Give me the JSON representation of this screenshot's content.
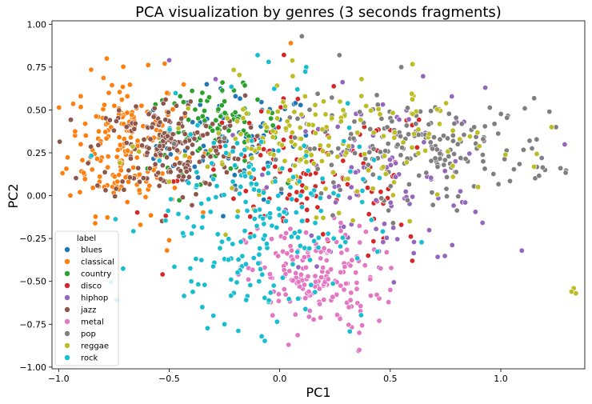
{
  "chart_data": {
    "type": "scatter",
    "title": "PCA visualization by genres (3 seconds fragments)",
    "xlabel": "PC1",
    "ylabel": "PC2",
    "xlim": [
      -1.03,
      1.38
    ],
    "ylim": [
      -1.01,
      1.02
    ],
    "x_ticks": [
      -1.0,
      -0.5,
      0.0,
      0.5,
      1.0
    ],
    "x_tick_labels": [
      "−1.0",
      "−0.5",
      "0.0",
      "0.5",
      "1.0"
    ],
    "y_ticks": [
      1.0,
      0.75,
      0.5,
      0.25,
      0.0,
      -0.25,
      -0.5,
      -0.75,
      -1.0
    ],
    "y_tick_labels": [
      "1.00",
      "0.75",
      "0.50",
      "0.25",
      "0.00",
      "−0.25",
      "−0.50",
      "−0.75",
      "−1.00"
    ],
    "grid": false,
    "legend": {
      "title": "label",
      "position": "lower-left",
      "entries": [
        "blues",
        "classical",
        "country",
        "disco",
        "hiphop",
        "jazz",
        "metal",
        "pop",
        "reggae",
        "rock"
      ]
    },
    "series": [
      {
        "name": "blues",
        "color": "#1f77b4",
        "center": [
          -0.2,
          0.3
        ],
        "spread": [
          0.18,
          0.16
        ],
        "count": 70,
        "points": [
          [
            -0.33,
            0.65
          ],
          [
            -0.26,
            0.61
          ],
          [
            -0.2,
            0.58
          ],
          [
            -0.36,
            0.53
          ],
          [
            -0.08,
            0.5
          ]
        ]
      },
      {
        "name": "classical",
        "color": "#ff7f0e",
        "center": [
          -0.7,
          0.3
        ],
        "spread": [
          0.13,
          0.2
        ],
        "count": 190,
        "points": [
          [
            -0.9,
            0.58
          ],
          [
            -0.88,
            0.42
          ],
          [
            -0.9,
            0.3
          ],
          [
            -0.78,
            0.06
          ],
          [
            -0.63,
            -0.17
          ],
          [
            -0.52,
            0.77
          ],
          [
            -0.5,
            -0.26
          ],
          [
            0.05,
            0.89
          ],
          [
            -0.51,
            -0.32
          ]
        ]
      },
      {
        "name": "country",
        "color": "#2ca02c",
        "center": [
          -0.3,
          0.38
        ],
        "spread": [
          0.15,
          0.12
        ],
        "count": 80,
        "points": [
          [
            -0.45,
            0.58
          ],
          [
            -0.35,
            0.6
          ],
          [
            -0.25,
            0.55
          ],
          [
            -0.1,
            0.56
          ],
          [
            -0.04,
            0.45
          ]
        ]
      },
      {
        "name": "disco",
        "color": "#d62728",
        "center": [
          0.15,
          0.1
        ],
        "spread": [
          0.3,
          0.22
        ],
        "count": 110,
        "points": [
          [
            0.4,
            -0.35
          ],
          [
            0.6,
            -0.38
          ],
          [
            0.47,
            -0.25
          ],
          [
            0.55,
            -0.17
          ],
          [
            0.1,
            -0.05
          ]
        ]
      },
      {
        "name": "hiphop",
        "color": "#9467bd",
        "center": [
          0.5,
          0.1
        ],
        "spread": [
          0.25,
          0.25
        ],
        "count": 110,
        "points": [
          [
            0.93,
            0.63
          ],
          [
            -0.5,
            0.79
          ],
          [
            -0.29,
            0.68
          ],
          [
            0.8,
            0.43
          ],
          [
            0.45,
            -0.42
          ]
        ]
      },
      {
        "name": "jazz",
        "color": "#8c564b",
        "center": [
          -0.5,
          0.28
        ],
        "spread": [
          0.17,
          0.15
        ],
        "count": 180,
        "points": [
          [
            -0.65,
            0.52
          ],
          [
            -0.75,
            0.38
          ],
          [
            -0.55,
            0.45
          ],
          [
            -0.6,
            0.1
          ]
        ]
      },
      {
        "name": "metal",
        "color": "#e377c2",
        "center": [
          0.15,
          -0.48
        ],
        "spread": [
          0.15,
          0.15
        ],
        "count": 170,
        "points": [
          [
            0.04,
            -0.87
          ],
          [
            0.36,
            -0.8
          ],
          [
            0.45,
            -0.6
          ],
          [
            0.5,
            -0.55
          ],
          [
            0.45,
            -0.73
          ],
          [
            0.36,
            -0.9
          ]
        ]
      },
      {
        "name": "pop",
        "color": "#7f7f7f",
        "center": [
          0.65,
          0.28
        ],
        "spread": [
          0.3,
          0.14
        ],
        "count": 190,
        "points": [
          [
            0.1,
            0.93
          ],
          [
            0.27,
            0.82
          ],
          [
            1.22,
            0.49
          ],
          [
            1.25,
            0.4
          ],
          [
            1.27,
            0.16
          ],
          [
            1.2,
            0.15
          ],
          [
            0.92,
            0.2
          ],
          [
            0.55,
            0.75
          ]
        ]
      },
      {
        "name": "reggae",
        "color": "#bcbd22",
        "center": [
          0.2,
          0.3
        ],
        "spread": [
          0.35,
          0.18
        ],
        "count": 180,
        "points": [
          [
            1.34,
            -0.57
          ],
          [
            1.33,
            -0.54
          ],
          [
            1.32,
            -0.56
          ],
          [
            1.23,
            0.4
          ],
          [
            0.37,
            0.68
          ]
        ]
      },
      {
        "name": "rock",
        "color": "#17becf",
        "center": [
          -0.1,
          -0.15
        ],
        "spread": [
          0.25,
          0.3
        ],
        "count": 210,
        "points": [
          [
            -0.1,
            0.82
          ],
          [
            -0.05,
            0.78
          ],
          [
            0.12,
            0.75
          ],
          [
            0.08,
            0.62
          ],
          [
            -0.3,
            -0.7
          ],
          [
            -0.25,
            -0.75
          ],
          [
            -0.4,
            -0.5
          ],
          [
            -0.35,
            -0.65
          ],
          [
            -0.05,
            -0.62
          ]
        ]
      }
    ]
  }
}
